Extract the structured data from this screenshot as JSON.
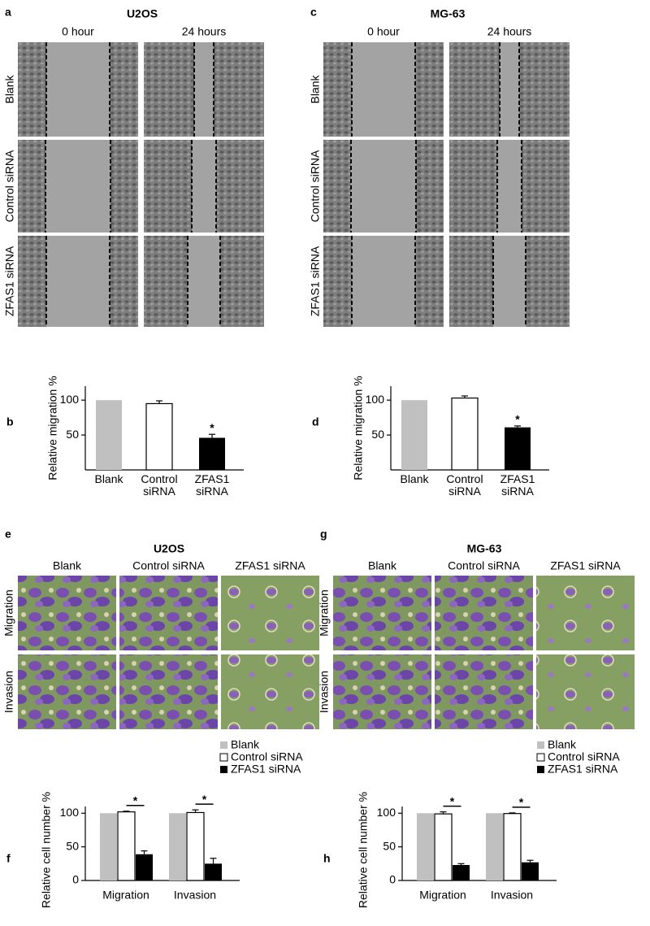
{
  "wound_panels": [
    {
      "label": "a",
      "title": "U2OS",
      "columns": [
        "0 hour",
        "24 hours"
      ],
      "rows": [
        "Blank",
        "Control siRNA",
        "ZFAS1 siRNA"
      ]
    },
    {
      "label": "c",
      "title": "MG-63",
      "columns": [
        "0 hour",
        "24 hours"
      ],
      "rows": [
        "Blank",
        "Control siRNA",
        "ZFAS1 siRNA"
      ]
    }
  ],
  "transwell_panels": [
    {
      "label": "e",
      "title": "U2OS",
      "columns": [
        "Blank",
        "Control siRNA",
        "ZFAS1 siRNA"
      ],
      "rows": [
        "Migration",
        "Invasion"
      ]
    },
    {
      "label": "g",
      "title": "MG-63",
      "columns": [
        "Blank",
        "Control siRNA",
        "ZFAS1 siRNA"
      ],
      "rows": [
        "Migration",
        "Invasion"
      ]
    }
  ],
  "chart_data": [
    {
      "type": "bar",
      "label": "b",
      "ylabel": "Relative migration %",
      "categories": [
        "Blank",
        "Control siRNA",
        "ZFAS1 siRNA"
      ],
      "values": [
        100,
        95,
        46
      ],
      "errors": [
        null,
        4,
        5
      ],
      "colors": [
        "#c0c0c0",
        "#ffffff",
        "#000000"
      ],
      "ylim": [
        0,
        120
      ],
      "yticks": [
        50,
        100
      ],
      "annotations": [
        {
          "text": "*",
          "category": "ZFAS1 siRNA"
        }
      ]
    },
    {
      "type": "bar",
      "label": "d",
      "ylabel": "Relative migration %",
      "categories": [
        "Blank",
        "Control siRNA",
        "ZFAS1 siRNA"
      ],
      "values": [
        100,
        103,
        61
      ],
      "errors": [
        null,
        3,
        2
      ],
      "colors": [
        "#c0c0c0",
        "#ffffff",
        "#000000"
      ],
      "ylim": [
        0,
        120
      ],
      "yticks": [
        50,
        100
      ],
      "annotations": [
        {
          "text": "*",
          "category": "ZFAS1 siRNA"
        }
      ]
    },
    {
      "type": "grouped_bar",
      "label": "f",
      "ylabel": "Relative cell number %",
      "categories": [
        "Migration",
        "Invasion"
      ],
      "series": [
        {
          "name": "Blank",
          "color": "#c0c0c0",
          "values": [
            100,
            100
          ]
        },
        {
          "name": "Control siRNA",
          "color": "#ffffff",
          "values": [
            102,
            101
          ],
          "errors": [
            1,
            4
          ]
        },
        {
          "name": "ZFAS1 siRNA",
          "color": "#000000",
          "values": [
            39,
            25
          ],
          "errors": [
            5,
            8
          ]
        }
      ],
      "ylim": [
        0,
        110
      ],
      "yticks": [
        0,
        50,
        100
      ],
      "annotations": [
        {
          "text": "*",
          "category": "Migration"
        },
        {
          "text": "*",
          "category": "Invasion"
        }
      ]
    },
    {
      "type": "grouped_bar",
      "label": "h",
      "ylabel": "Relative cell number %",
      "categories": [
        "Migration",
        "Invasion"
      ],
      "series": [
        {
          "name": "Blank",
          "color": "#c0c0c0",
          "values": [
            100,
            100
          ]
        },
        {
          "name": "Control siRNA",
          "color": "#ffffff",
          "values": [
            99,
            99.5
          ],
          "errors": [
            3,
            1
          ]
        },
        {
          "name": "ZFAS1 siRNA",
          "color": "#000000",
          "values": [
            23,
            27
          ],
          "errors": [
            2,
            3
          ]
        }
      ],
      "ylim": [
        0,
        110
      ],
      "yticks": [
        0,
        50,
        100
      ],
      "annotations": [
        {
          "text": "*",
          "category": "Migration"
        },
        {
          "text": "*",
          "category": "Invasion"
        }
      ]
    }
  ]
}
